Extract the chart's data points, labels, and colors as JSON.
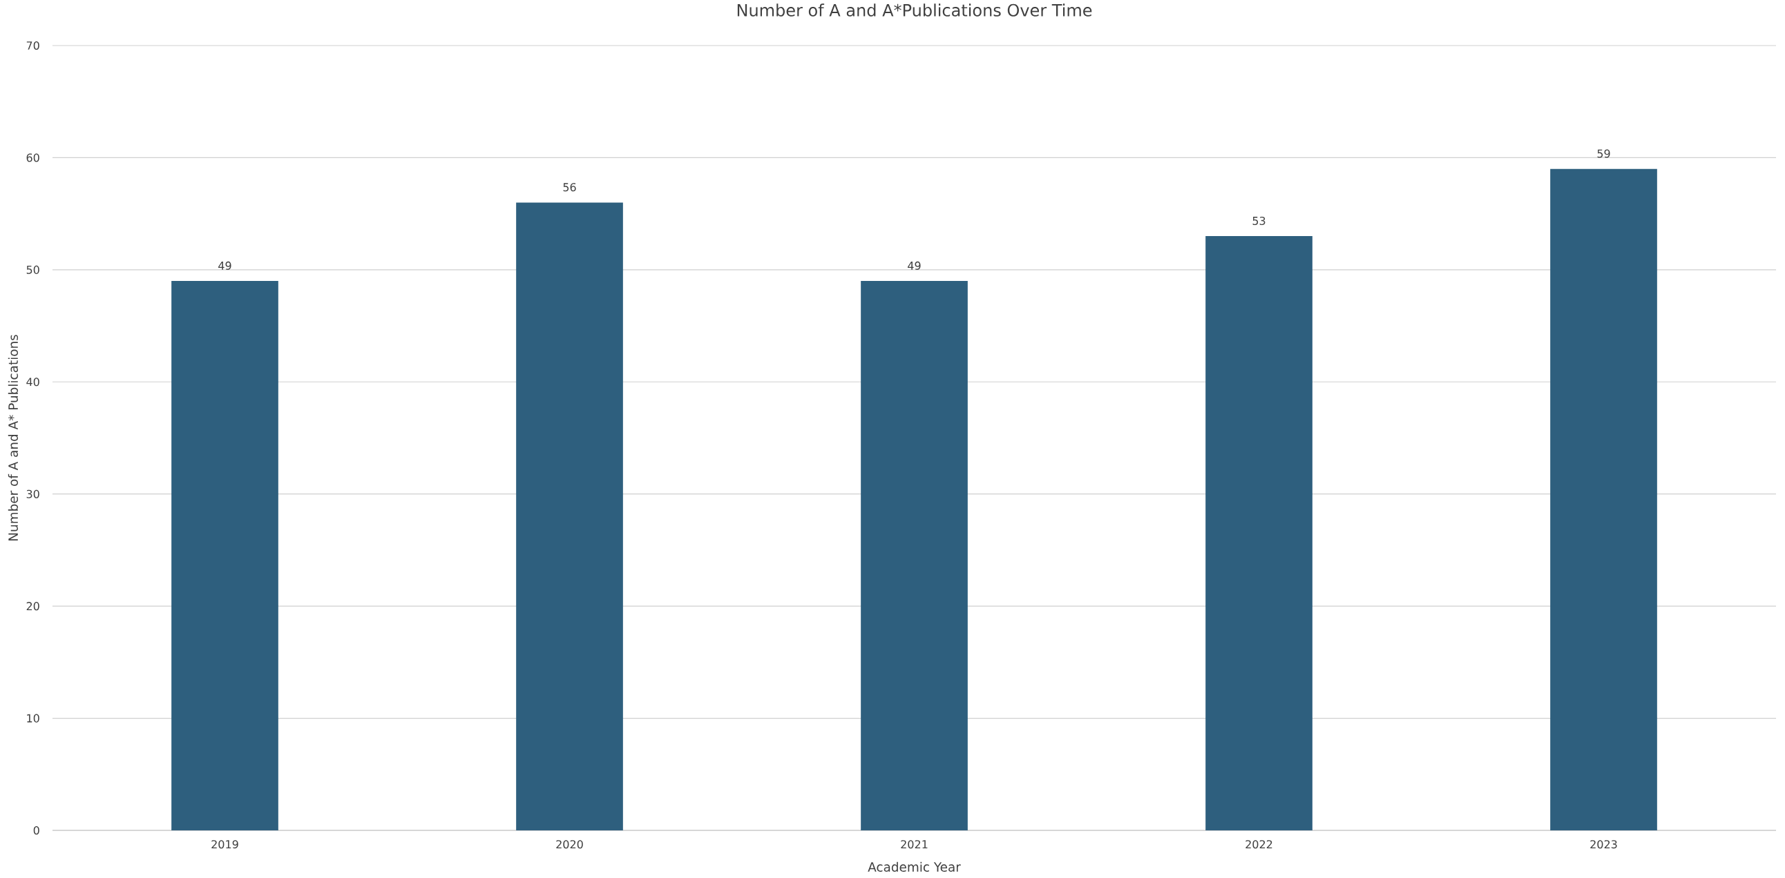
{
  "chart_data": {
    "type": "bar",
    "title": "Number of A and A*Publications Over Time",
    "xlabel": "Academic Year",
    "ylabel": "Number of A and A* Publications",
    "categories": [
      "2019",
      "2020",
      "2021",
      "2022",
      "2023"
    ],
    "values": [
      49,
      56,
      49,
      53,
      59
    ],
    "color": "#2e5f7e",
    "ylim": [
      0,
      70
    ],
    "yticks": [
      0,
      10,
      20,
      30,
      40,
      50,
      60,
      70
    ],
    "grid": "y",
    "data_labels": true
  }
}
